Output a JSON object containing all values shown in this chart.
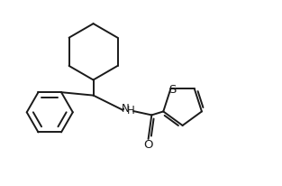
{
  "bg_color": "#ffffff",
  "line_color": "#1a1a1a",
  "text_color": "#1a1a1a",
  "line_width": 1.4,
  "font_size": 8.5,
  "figsize": [
    3.13,
    2.07
  ],
  "dpi": 100,
  "xlim": [
    0,
    10
  ],
  "ylim": [
    0,
    6.6
  ]
}
